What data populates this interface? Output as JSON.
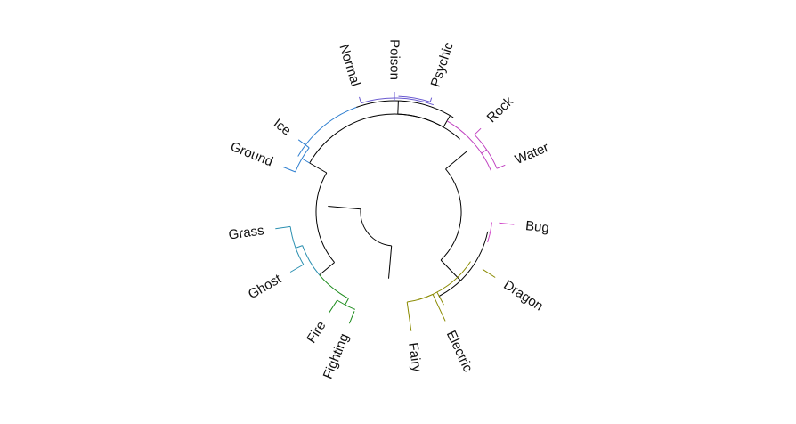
{
  "dendrogram": {
    "type": "circular-dendrogram",
    "leaves": [
      {
        "label": "Bug",
        "cluster": "bug",
        "color": "#d045c8"
      },
      {
        "label": "Dragon",
        "cluster": "dragon",
        "color": "#8a8a00"
      },
      {
        "label": "Electric",
        "cluster": "dragon",
        "color": "#8a8a00"
      },
      {
        "label": "Fairy",
        "cluster": "dragon",
        "color": "#8a8a00"
      },
      {
        "label": "Fighting",
        "cluster": "fire",
        "color": "#1a8a1a"
      },
      {
        "label": "Fire",
        "cluster": "fire",
        "color": "#1a8a1a"
      },
      {
        "label": "Ghost",
        "cluster": "grass",
        "color": "#2a8fb0"
      },
      {
        "label": "Grass",
        "cluster": "grass",
        "color": "#2a8fb0"
      },
      {
        "label": "Ground",
        "cluster": "ground",
        "color": "#2f7fd0"
      },
      {
        "label": "Ice",
        "cluster": "ground",
        "color": "#2f7fd0"
      },
      {
        "label": "Normal",
        "cluster": "normal",
        "color": "#6a5ad0"
      },
      {
        "label": "Poison",
        "cluster": "normal",
        "color": "#6a5ad0"
      },
      {
        "label": "Psychic",
        "cluster": "normal",
        "color": "#6a5ad0"
      },
      {
        "label": "Rock",
        "cluster": "rock",
        "color": "#c040c0"
      },
      {
        "label": "Water",
        "cluster": "rock",
        "color": "#c040c0"
      }
    ],
    "colors": {
      "trunk": "#000000",
      "bug": "#d045c8",
      "dragon": "#8a8a00",
      "fire": "#1a8a1a",
      "grass": "#2a8fb0",
      "ground": "#2f7fd0",
      "normal": "#6a5ad0",
      "rock": "#c040c0"
    }
  }
}
